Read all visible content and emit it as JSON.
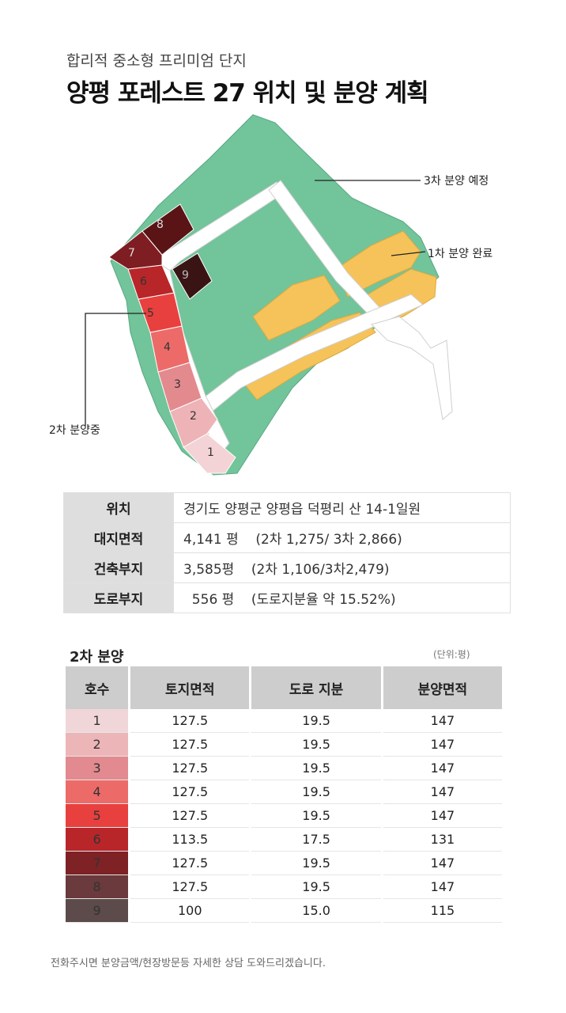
{
  "header": {
    "subtitle": "합리적 중소형 프리미엄 단지",
    "title": "양평 포레스트 27 위치 및 분양 계획"
  },
  "map": {
    "callouts": {
      "phase3": "3차 분양 예정",
      "phase1": "1차 분양 완료",
      "phase2": "2차 분양중"
    },
    "lots": [
      "1",
      "2",
      "3",
      "4",
      "5",
      "6",
      "7",
      "8",
      "9"
    ],
    "colors": {
      "phase3": "#72c49a",
      "phase1": "#f5c35a",
      "road": "#ffffff",
      "lot1": "#f3d3d5",
      "lot2": "#eeb3b6",
      "lot3": "#e38a8f",
      "lot4": "#ec6b68",
      "lot5": "#e8403e",
      "lot6": "#b8262a",
      "lot7": "#7e1e22",
      "lot8": "#5a1416",
      "lot9": "#3a1414"
    }
  },
  "info": {
    "rows": [
      {
        "label": "위치",
        "value": "경기도 양평군 양평읍 덕평리 산 14-1일원"
      },
      {
        "label": "대지면적",
        "value": "4,141 평    (2차 1,275/ 3차 2,866)"
      },
      {
        "label": "건축부지",
        "value": "3,585평    (2차 1,106/3차2,479)"
      },
      {
        "label": "도로부지",
        "value": "  556 평    (도로지분율 약 15.52%)"
      }
    ]
  },
  "sale": {
    "title": "2차 분양",
    "unit": "(단위:평)",
    "headers": [
      "호수",
      "토지면적",
      "도로 지분",
      "분양면적"
    ],
    "rows": [
      {
        "no": "1",
        "land": "127.5",
        "road": "19.5",
        "area": "147",
        "color": "#f0d6d8"
      },
      {
        "no": "2",
        "land": "127.5",
        "road": "19.5",
        "area": "147",
        "color": "#ecb5b8"
      },
      {
        "no": "3",
        "land": "127.5",
        "road": "19.5",
        "area": "147",
        "color": "#e28a8f"
      },
      {
        "no": "4",
        "land": "127.5",
        "road": "19.5",
        "area": "147",
        "color": "#ec6b68"
      },
      {
        "no": "5",
        "land": "127.5",
        "road": "19.5",
        "area": "147",
        "color": "#e8403e"
      },
      {
        "no": "6",
        "land": "113.5",
        "road": "17.5",
        "area": "131",
        "color": "#b8262a"
      },
      {
        "no": "7",
        "land": "127.5",
        "road": "19.5",
        "area": "147",
        "color": "#7e2226"
      },
      {
        "no": "8",
        "land": "127.5",
        "road": "19.5",
        "area": "147",
        "color": "#6a3a3c"
      },
      {
        "no": "9",
        "land": "100",
        "road": "15.0",
        "area": "115",
        "color": "#5d4a4a"
      }
    ]
  },
  "footer": "전화주시면 분양금액/현장방문등 자세한 상담 도와드리겠습니다."
}
